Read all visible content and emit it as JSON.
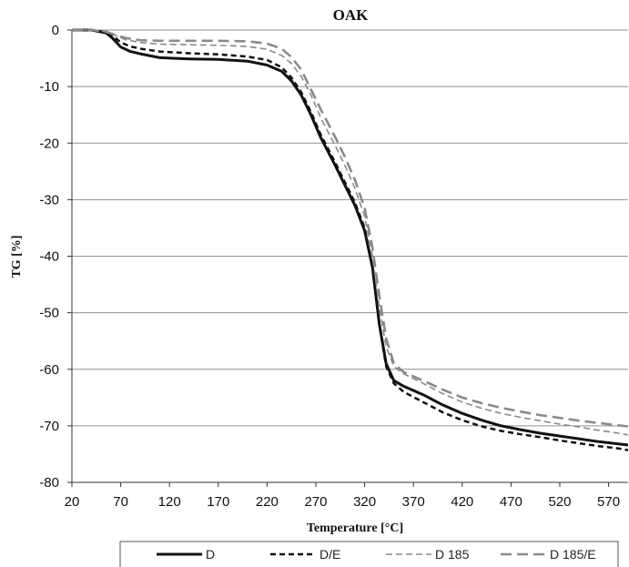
{
  "chart_data": {
    "type": "line",
    "title": "OAK",
    "xlabel": "Temperature [°C]",
    "ylabel": "TG [%]",
    "xlim": [
      20,
      590
    ],
    "ylim": [
      -80,
      0
    ],
    "x_ticks": [
      20,
      70,
      120,
      170,
      220,
      270,
      320,
      370,
      420,
      470,
      520,
      570
    ],
    "y_ticks": [
      0,
      -10,
      -20,
      -30,
      -40,
      -50,
      -60,
      -70,
      -80
    ],
    "grid": "horizontal",
    "legend_position": "bottom",
    "series": [
      {
        "name": "D",
        "color": "#111111",
        "style": "solid",
        "points": [
          [
            20,
            0
          ],
          [
            40,
            0
          ],
          [
            55,
            -0.5
          ],
          [
            62,
            -1.5
          ],
          [
            70,
            -3
          ],
          [
            80,
            -3.8
          ],
          [
            90,
            -4.2
          ],
          [
            110,
            -4.9
          ],
          [
            140,
            -5.1
          ],
          [
            170,
            -5.2
          ],
          [
            200,
            -5.5
          ],
          [
            220,
            -6.2
          ],
          [
            235,
            -7.3
          ],
          [
            245,
            -9
          ],
          [
            255,
            -11.5
          ],
          [
            265,
            -15
          ],
          [
            275,
            -19
          ],
          [
            290,
            -24
          ],
          [
            300,
            -27.5
          ],
          [
            310,
            -31
          ],
          [
            320,
            -35.5
          ],
          [
            328,
            -42
          ],
          [
            335,
            -52
          ],
          [
            342,
            -59
          ],
          [
            350,
            -62
          ],
          [
            360,
            -63
          ],
          [
            380,
            -64.5
          ],
          [
            400,
            -66.3
          ],
          [
            420,
            -67.8
          ],
          [
            440,
            -69
          ],
          [
            460,
            -70
          ],
          [
            480,
            -70.7
          ],
          [
            500,
            -71.3
          ],
          [
            520,
            -71.8
          ],
          [
            540,
            -72.3
          ],
          [
            560,
            -72.8
          ],
          [
            580,
            -73.2
          ],
          [
            590,
            -73.4
          ]
        ]
      },
      {
        "name": "D/E",
        "color": "#111111",
        "style": "short-dash",
        "points": [
          [
            20,
            0
          ],
          [
            40,
            0
          ],
          [
            55,
            -0.4
          ],
          [
            62,
            -1
          ],
          [
            70,
            -2.2
          ],
          [
            80,
            -2.9
          ],
          [
            90,
            -3.3
          ],
          [
            110,
            -3.8
          ],
          [
            140,
            -4.1
          ],
          [
            170,
            -4.3
          ],
          [
            200,
            -4.7
          ],
          [
            220,
            -5.3
          ],
          [
            235,
            -6.6
          ],
          [
            245,
            -8.4
          ],
          [
            255,
            -11
          ],
          [
            265,
            -14.5
          ],
          [
            275,
            -18.5
          ],
          [
            290,
            -23.5
          ],
          [
            300,
            -27
          ],
          [
            310,
            -30.5
          ],
          [
            320,
            -35
          ],
          [
            328,
            -42
          ],
          [
            335,
            -52
          ],
          [
            342,
            -59.5
          ],
          [
            350,
            -62.5
          ],
          [
            360,
            -64
          ],
          [
            380,
            -65.8
          ],
          [
            400,
            -67.6
          ],
          [
            420,
            -69
          ],
          [
            440,
            -70.1
          ],
          [
            460,
            -70.9
          ],
          [
            480,
            -71.5
          ],
          [
            500,
            -72
          ],
          [
            520,
            -72.6
          ],
          [
            540,
            -73.1
          ],
          [
            560,
            -73.6
          ],
          [
            580,
            -74
          ],
          [
            590,
            -74.3
          ]
        ]
      },
      {
        "name": "D 185",
        "color": "#8a8a8a",
        "style": "thin-dash",
        "points": [
          [
            20,
            0
          ],
          [
            40,
            0
          ],
          [
            55,
            -0.3
          ],
          [
            65,
            -1
          ],
          [
            75,
            -1.7
          ],
          [
            90,
            -2.2
          ],
          [
            110,
            -2.5
          ],
          [
            140,
            -2.6
          ],
          [
            170,
            -2.7
          ],
          [
            200,
            -2.9
          ],
          [
            220,
            -3.4
          ],
          [
            235,
            -4.5
          ],
          [
            245,
            -5.9
          ],
          [
            255,
            -8.2
          ],
          [
            265,
            -11.5
          ],
          [
            275,
            -15.5
          ],
          [
            290,
            -20.5
          ],
          [
            300,
            -24
          ],
          [
            310,
            -28
          ],
          [
            320,
            -33
          ],
          [
            328,
            -40
          ],
          [
            335,
            -49
          ],
          [
            342,
            -56
          ],
          [
            350,
            -59.5
          ],
          [
            360,
            -60.8
          ],
          [
            380,
            -62.5
          ],
          [
            400,
            -64.3
          ],
          [
            420,
            -65.8
          ],
          [
            440,
            -66.9
          ],
          [
            460,
            -67.8
          ],
          [
            480,
            -68.5
          ],
          [
            500,
            -69.1
          ],
          [
            520,
            -69.7
          ],
          [
            540,
            -70.2
          ],
          [
            560,
            -70.8
          ],
          [
            580,
            -71.3
          ],
          [
            590,
            -71.6
          ]
        ]
      },
      {
        "name": "D 185/E",
        "color": "#8a8a8a",
        "style": "long-dash",
        "points": [
          [
            20,
            0
          ],
          [
            40,
            0
          ],
          [
            55,
            -0.3
          ],
          [
            65,
            -0.9
          ],
          [
            75,
            -1.4
          ],
          [
            90,
            -1.8
          ],
          [
            110,
            -1.9
          ],
          [
            140,
            -1.9
          ],
          [
            170,
            -1.9
          ],
          [
            200,
            -2
          ],
          [
            220,
            -2.4
          ],
          [
            235,
            -3.3
          ],
          [
            245,
            -4.8
          ],
          [
            255,
            -7
          ],
          [
            265,
            -10.5
          ],
          [
            275,
            -14
          ],
          [
            290,
            -19
          ],
          [
            300,
            -22.5
          ],
          [
            310,
            -26.5
          ],
          [
            320,
            -31.5
          ],
          [
            328,
            -38.5
          ],
          [
            335,
            -47
          ],
          [
            342,
            -54.5
          ],
          [
            350,
            -59
          ],
          [
            360,
            -60.5
          ],
          [
            380,
            -62
          ],
          [
            400,
            -63.6
          ],
          [
            420,
            -65
          ],
          [
            440,
            -66
          ],
          [
            460,
            -66.8
          ],
          [
            480,
            -67.5
          ],
          [
            500,
            -68.1
          ],
          [
            520,
            -68.6
          ],
          [
            540,
            -69.1
          ],
          [
            560,
            -69.5
          ],
          [
            580,
            -69.9
          ],
          [
            590,
            -70.1
          ]
        ]
      }
    ]
  }
}
